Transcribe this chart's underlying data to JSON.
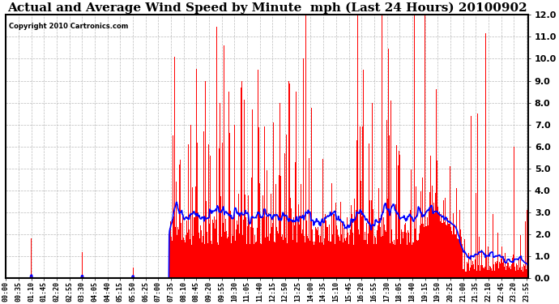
{
  "title": "Actual and Average Wind Speed by Minute  mph (Last 24 Hours) 20100902",
  "copyright": "Copyright 2010 Cartronics.com",
  "ylim": [
    0,
    12.0
  ],
  "yticks": [
    0.0,
    1.0,
    2.0,
    3.0,
    4.0,
    5.0,
    6.0,
    7.0,
    8.0,
    9.0,
    10.0,
    11.0,
    12.0
  ],
  "bar_color": "#ff0000",
  "line_color": "#0000ff",
  "background_color": "#ffffff",
  "grid_color": "#aaaaaa",
  "title_fontsize": 11,
  "copyright_fontsize": 6,
  "tick_fontsize": 6,
  "ytick_fontsize": 8,
  "tick_interval": 35
}
